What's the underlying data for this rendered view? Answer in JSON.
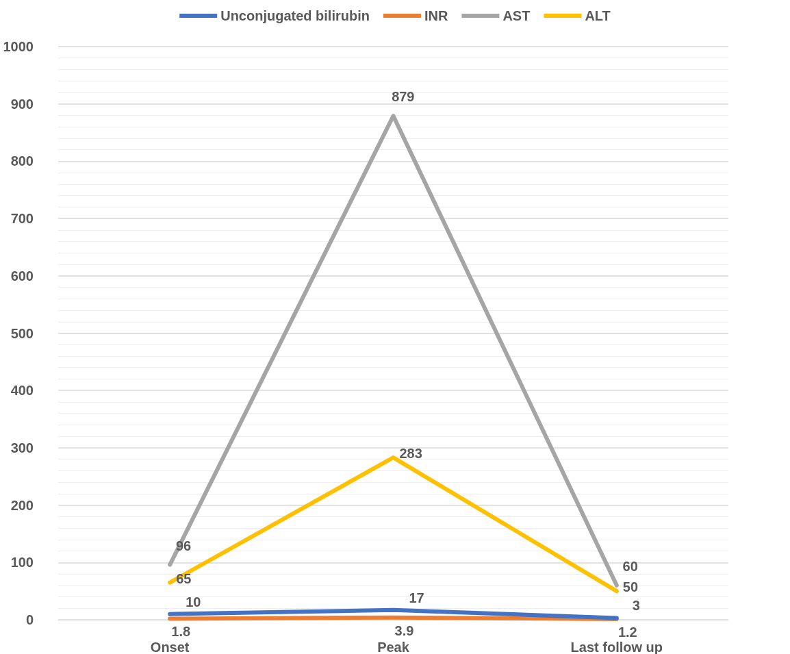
{
  "chart_data": {
    "type": "line",
    "categories": [
      "Onset",
      "Peak",
      "Last follow up"
    ],
    "series": [
      {
        "name": "Unconjugated bilirubin",
        "color": "#4472c4",
        "values": [
          10,
          17,
          3
        ]
      },
      {
        "name": "INR",
        "color": "#ed7d31",
        "values": [
          1.8,
          3.9,
          1.2
        ]
      },
      {
        "name": "AST",
        "color": "#a5a5a5",
        "values": [
          96,
          879,
          60
        ]
      },
      {
        "name": "ALT",
        "color": "#ffc000",
        "values": [
          65,
          283,
          50
        ]
      }
    ],
    "ylim": [
      0,
      1000
    ],
    "yticks": [
      0,
      100,
      200,
      300,
      400,
      500,
      600,
      700,
      800,
      900,
      1000
    ],
    "grid": "y",
    "legend": "top",
    "marker": "none",
    "line_style": "solid",
    "data_labels": true
  }
}
